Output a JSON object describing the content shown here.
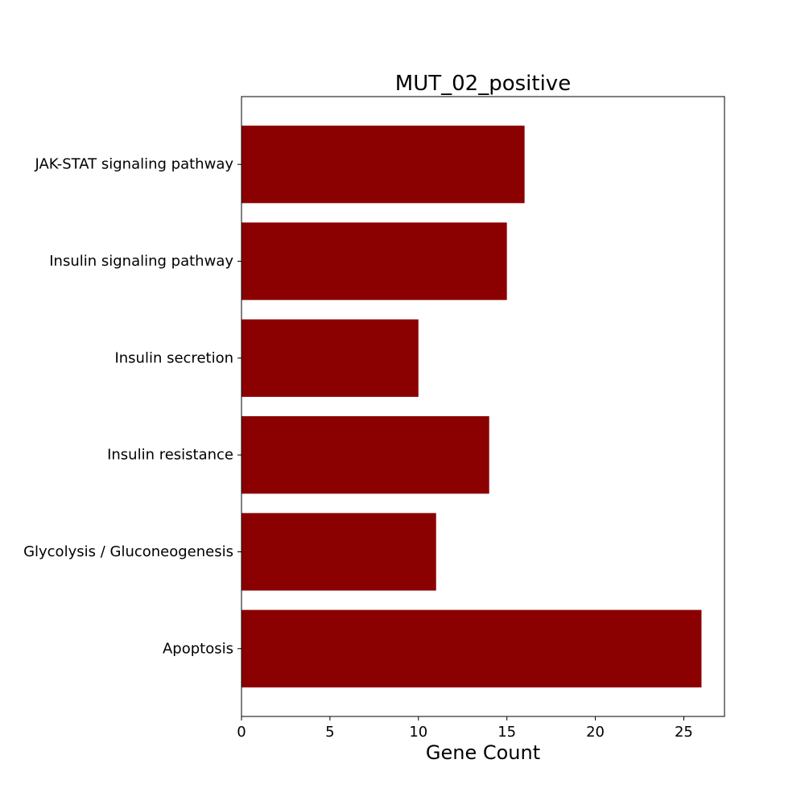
{
  "chart_data": {
    "type": "bar",
    "orientation": "horizontal",
    "title": "MUT_02_positive",
    "xlabel": "Gene Count",
    "ylabel": "",
    "categories": [
      "JAK-STAT signaling pathway",
      "Insulin signaling pathway",
      "Insulin secretion",
      "Insulin resistance",
      "Glycolysis / Gluconeogenesis",
      "Apoptosis"
    ],
    "values": [
      16,
      15,
      10,
      14,
      11,
      26
    ],
    "xlim": [
      0,
      27.3
    ],
    "xticks": [
      "0",
      "5",
      "10",
      "15",
      "20",
      "25"
    ],
    "grid": false,
    "bar_color": "#8b0000"
  }
}
